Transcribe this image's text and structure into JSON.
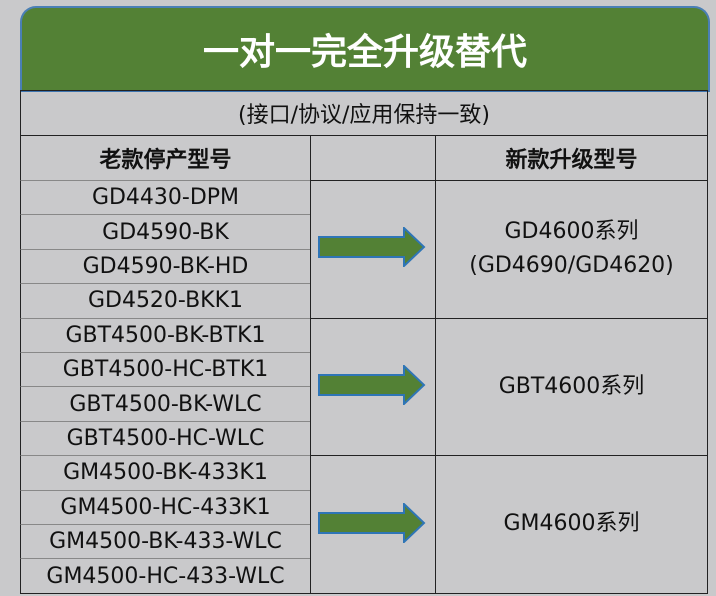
{
  "title": "一对一完全升级替代",
  "subtitle": "(接口/协议/应用保持一致)",
  "headers": {
    "old": "老款停产型号",
    "arrow": "",
    "new": "新款升级型号"
  },
  "groups": [
    {
      "old": [
        "GD4430-DPM",
        "GD4590-BK",
        "GD4590-BK-HD",
        "GD4520-BKK1"
      ],
      "new_line1": "GD4600系列",
      "new_line2": "(GD4690/GD4620)"
    },
    {
      "old": [
        "GBT4500-BK-BTK1",
        "GBT4500-HC-BTK1",
        "GBT4500-BK-WLC",
        "GBT4500-HC-WLC"
      ],
      "new_line1": "GBT4600系列",
      "new_line2": ""
    },
    {
      "old": [
        "GM4500-BK-433K1",
        "GM4500-HC-433K1",
        "GM4500-BK-433-WLC",
        "GM4500-HC-433-WLC"
      ],
      "new_line1": "GM4600系列",
      "new_line2": ""
    }
  ],
  "colors": {
    "green": "#538135",
    "arrow_border": "#2e75b6",
    "background": "#c9c9cb"
  },
  "icons": {
    "arrow": "right-arrow-icon"
  }
}
